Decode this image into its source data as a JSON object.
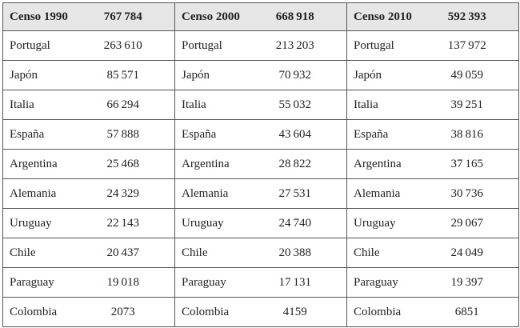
{
  "table": {
    "groups": [
      {
        "title": "Censo 1990",
        "total": "767 784",
        "rows": [
          [
            "Portugal",
            "263 610"
          ],
          [
            "Japón",
            "85 571"
          ],
          [
            "Italia",
            "66 294"
          ],
          [
            "España",
            "57 888"
          ],
          [
            "Argentina",
            "25 468"
          ],
          [
            "Alemania",
            "24 329"
          ],
          [
            "Uruguay",
            "22 143"
          ],
          [
            "Chile",
            "20 437"
          ],
          [
            "Paraguay",
            "19 018"
          ],
          [
            "Colombia",
            "2073"
          ]
        ]
      },
      {
        "title": "Censo 2000",
        "total": "668 918",
        "rows": [
          [
            "Portugal",
            "213 203"
          ],
          [
            "Japón",
            "70 932"
          ],
          [
            "Italia",
            "55 032"
          ],
          [
            "España",
            "43 604"
          ],
          [
            "Argentina",
            "28 822"
          ],
          [
            "Alemania",
            "27 531"
          ],
          [
            "Uruguay",
            "24 740"
          ],
          [
            "Chile",
            "20 388"
          ],
          [
            "Paraguay",
            "17 131"
          ],
          [
            "Colombia",
            "4159"
          ]
        ]
      },
      {
        "title": "Censo 2010",
        "total": "592 393",
        "rows": [
          [
            "Portugal",
            "137 972"
          ],
          [
            "Japón",
            "49 059"
          ],
          [
            "Italia",
            "39 251"
          ],
          [
            "España",
            "38 816"
          ],
          [
            "Argentina",
            "37 165"
          ],
          [
            "Alemania",
            "30 736"
          ],
          [
            "Uruguay",
            "29 067"
          ],
          [
            "Chile",
            "24 049"
          ],
          [
            "Paraguay",
            "19 397"
          ],
          [
            "Colombia",
            "6851"
          ]
        ]
      }
    ]
  }
}
